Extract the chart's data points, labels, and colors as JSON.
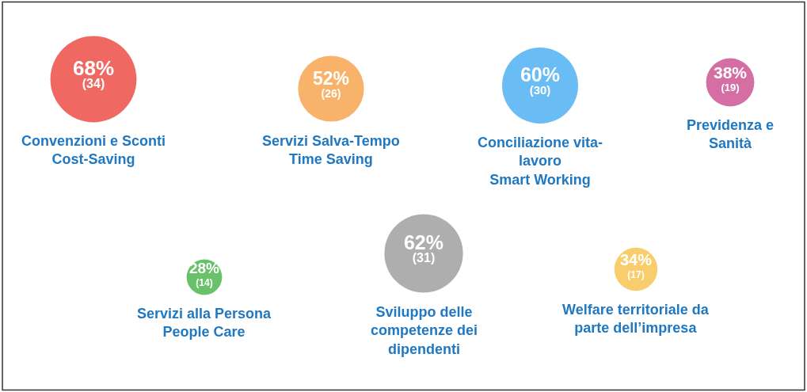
{
  "chart_data": {
    "type": "other",
    "categories": [
      "Convenzioni e Sconti\nCost-Saving",
      "Servizi Salva-Tempo\nTime Saving",
      "Conciliazione vita-\nlavoro\nSmart Working",
      "Previdenza e\nSanità",
      "Servizi alla Persona\nPeople Care",
      "Sviluppo delle\ncompetenze dei\ndipendenti",
      "Welfare territoriale da\nparte dell’impresa"
    ],
    "values": [
      68,
      52,
      60,
      38,
      28,
      62,
      34
    ],
    "value_labels": [
      "68%\n(34)",
      "52%\n(26)",
      "60%\n(30)",
      "38%\n(19)",
      "28%\n(14)",
      "62%\n(31)",
      "34%\n(17)"
    ],
    "colors": [
      "#e8281f",
      "#f7922a",
      "#2b9ff0",
      "#c3317c",
      "#2aa62a",
      "#8c8c8c",
      "#f5b82e"
    ]
  }
}
